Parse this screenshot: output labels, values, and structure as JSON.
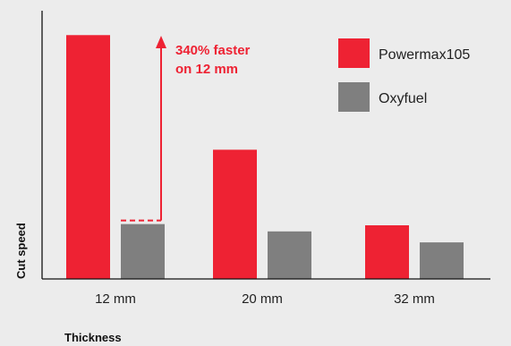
{
  "chart_data": {
    "type": "bar",
    "categories": [
      "12 mm",
      "20 mm",
      "32 mm"
    ],
    "series": [
      {
        "name": "Powermax105",
        "values": [
          100,
          53,
          22
        ],
        "color": "#ee2233"
      },
      {
        "name": "Oxyfuel",
        "values": [
          22.5,
          19.5,
          15
        ],
        "color": "#7f7f7f"
      }
    ],
    "xlabel": "Thickness",
    "ylabel": "Cut speed",
    "ylim": [
      0,
      110
    ],
    "grid": false,
    "legend_position": "top-right",
    "annotation": {
      "line1": "340% faster",
      "line2": "on 12 mm",
      "color": "#ee2233"
    }
  }
}
